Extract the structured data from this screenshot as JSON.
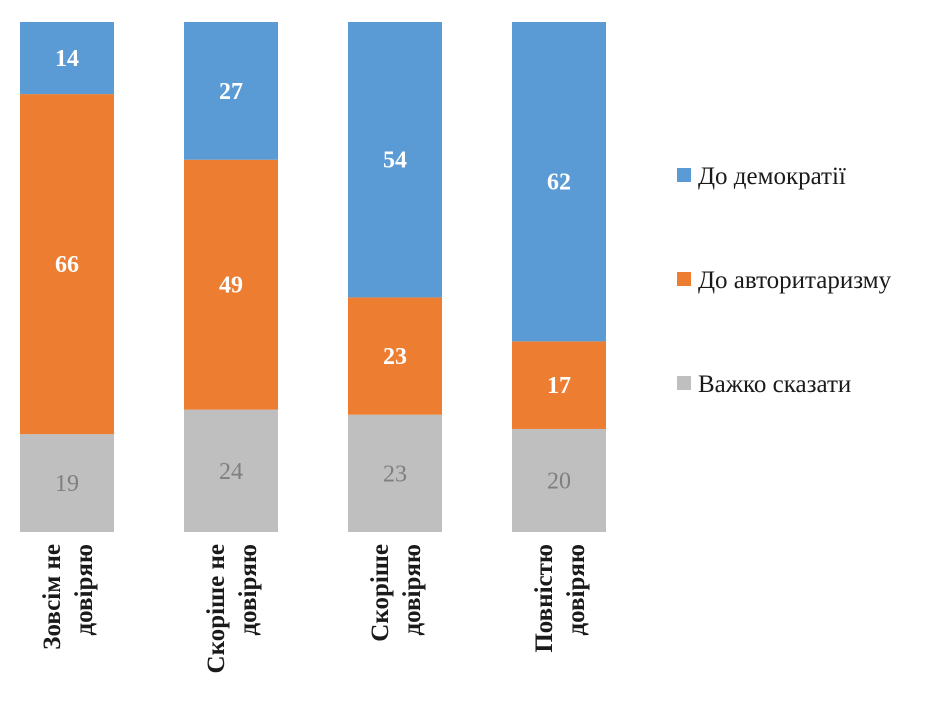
{
  "chart_data": {
    "type": "bar",
    "stacked": true,
    "percent_stacked": true,
    "categories": [
      [
        "Зовсім не",
        "довіряю"
      ],
      [
        "Скоріше не",
        "довіряю"
      ],
      [
        "Скоріше",
        "довіряю"
      ],
      [
        "Повністю",
        "довіряю"
      ]
    ],
    "series": [
      {
        "name": "Важко сказати",
        "color": "#bfbfbf",
        "label_color": "#7f7f7f",
        "label_bold": false,
        "values": [
          19,
          24,
          23,
          20
        ]
      },
      {
        "name": "До авторитаризму",
        "color": "#ed7d31",
        "label_color": "#ffffff",
        "label_bold": true,
        "values": [
          66,
          49,
          23,
          17
        ]
      },
      {
        "name": "До демократії",
        "color": "#5b9bd5",
        "label_color": "#ffffff",
        "label_bold": true,
        "values": [
          14,
          27,
          54,
          62
        ]
      }
    ],
    "legend_order": [
      "До демократії",
      "До авторитаризму",
      "Важко сказати"
    ],
    "legend_position": "right",
    "title": "",
    "xlabel": "",
    "ylabel": "",
    "grid": false
  }
}
